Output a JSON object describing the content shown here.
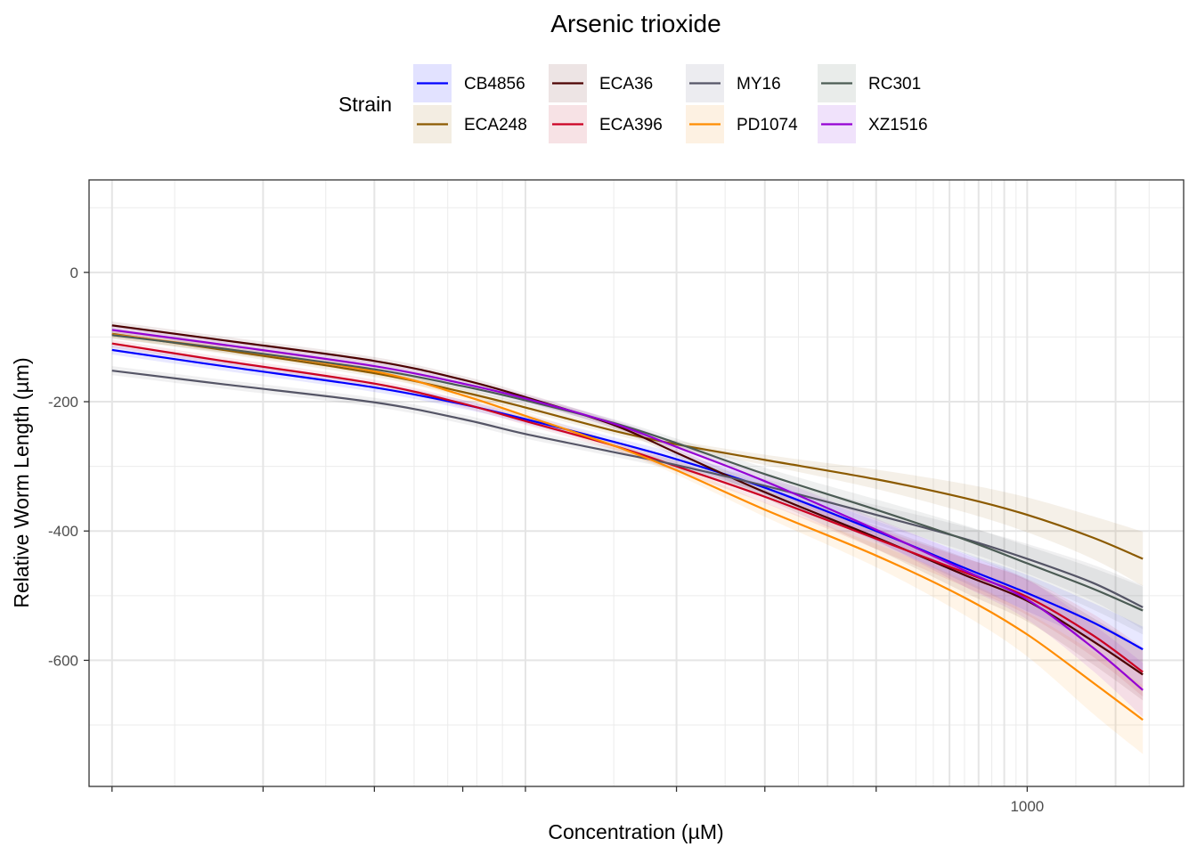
{
  "chart_data": {
    "type": "line",
    "title": "Arsenic trioxide",
    "xlabel": "Concentration (µM)",
    "ylabel": "Relative Worm Length (µm)",
    "x_scale": "log10",
    "x_tick_labels": [
      {
        "value": 1000,
        "label": "1000"
      }
    ],
    "y_ticks": [
      {
        "value": 0,
        "label": "0"
      },
      {
        "value": -200,
        "label": "-200"
      },
      {
        "value": -400,
        "label": "-400"
      },
      {
        "value": -600,
        "label": "-600"
      }
    ],
    "xlim": [
      13.5,
      2050
    ],
    "ylim": [
      -795,
      143
    ],
    "x": [
      15,
      25,
      50,
      75,
      100,
      150,
      200,
      300,
      500,
      750,
      1000,
      1350,
      1700
    ],
    "legend": {
      "title": "Strain",
      "placement": "top"
    },
    "series": [
      {
        "name": "CB4856",
        "color": "#0000ff",
        "band_color": "#e2e2ff",
        "values": [
          -120,
          -145,
          -178,
          -204,
          -227,
          -262,
          -289,
          -333,
          -400,
          -457,
          -496,
          -541,
          -583
        ],
        "lower": [
          -127,
          -152,
          -185,
          -211,
          -234,
          -269,
          -298,
          -344,
          -416,
          -480,
          -524,
          -571,
          -618
        ],
        "upper": [
          -113,
          -138,
          -171,
          -197,
          -220,
          -255,
          -280,
          -322,
          -384,
          -434,
          -468,
          -511,
          -548
        ]
      },
      {
        "name": "ECA248",
        "color": "#8b5a00",
        "band_color": "#f3ede2",
        "values": [
          -95,
          -120,
          -156,
          -185,
          -209,
          -245,
          -266,
          -290,
          -320,
          -349,
          -375,
          -410,
          -443
        ],
        "lower": [
          -101,
          -126,
          -162,
          -191,
          -215,
          -251,
          -272,
          -298,
          -335,
          -371,
          -402,
          -443,
          -485
        ],
        "upper": [
          -89,
          -114,
          -150,
          -179,
          -203,
          -239,
          -260,
          -282,
          -305,
          -327,
          -348,
          -377,
          -401
        ]
      },
      {
        "name": "ECA36",
        "color": "#4c0000",
        "band_color": "#ede4e4",
        "values": [
          -82,
          -105,
          -137,
          -166,
          -193,
          -236,
          -279,
          -340,
          -410,
          -468,
          -508,
          -570,
          -622
        ],
        "lower": [
          -88,
          -111,
          -143,
          -172,
          -199,
          -242,
          -285,
          -349,
          -428,
          -495,
          -540,
          -606,
          -662
        ],
        "upper": [
          -76,
          -99,
          -131,
          -160,
          -187,
          -230,
          -273,
          -331,
          -392,
          -441,
          -476,
          -534,
          -582
        ]
      },
      {
        "name": "ECA396",
        "color": "#cc0022",
        "band_color": "#f7e2e5",
        "values": [
          -110,
          -137,
          -172,
          -203,
          -230,
          -268,
          -300,
          -347,
          -412,
          -464,
          -502,
          -561,
          -618
        ],
        "lower": [
          -116,
          -143,
          -178,
          -209,
          -236,
          -275,
          -308,
          -357,
          -428,
          -486,
          -530,
          -594,
          -656
        ],
        "upper": [
          -104,
          -131,
          -166,
          -197,
          -224,
          -261,
          -292,
          -337,
          -396,
          -442,
          -474,
          -528,
          -580
        ]
      },
      {
        "name": "MY16",
        "color": "#555566",
        "band_color": "#ececf0",
        "values": [
          -152,
          -173,
          -201,
          -227,
          -250,
          -278,
          -298,
          -330,
          -375,
          -412,
          -443,
          -480,
          -518
        ],
        "lower": [
          -159,
          -180,
          -208,
          -234,
          -257,
          -285,
          -306,
          -340,
          -390,
          -431,
          -466,
          -508,
          -552
        ],
        "upper": [
          -145,
          -166,
          -194,
          -220,
          -243,
          -271,
          -290,
          -320,
          -360,
          -393,
          -420,
          -452,
          -484
        ]
      },
      {
        "name": "PD1074",
        "color": "#ff8c00",
        "band_color": "#fdf1e2",
        "values": [
          -96,
          -118,
          -153,
          -190,
          -222,
          -268,
          -306,
          -367,
          -438,
          -503,
          -560,
          -634,
          -692
        ],
        "lower": [
          -102,
          -124,
          -159,
          -196,
          -228,
          -274,
          -313,
          -378,
          -456,
          -530,
          -594,
          -682,
          -745
        ],
        "upper": [
          -90,
          -112,
          -147,
          -184,
          -216,
          -262,
          -299,
          -356,
          -420,
          -476,
          -526,
          -586,
          -639
        ]
      },
      {
        "name": "RC301",
        "color": "#4b5b54",
        "band_color": "#e9ecea",
        "values": [
          -97,
          -118,
          -150,
          -176,
          -198,
          -233,
          -264,
          -312,
          -367,
          -413,
          -450,
          -489,
          -523
        ],
        "lower": [
          -103,
          -124,
          -156,
          -182,
          -204,
          -239,
          -271,
          -322,
          -383,
          -435,
          -477,
          -521,
          -560
        ],
        "upper": [
          -91,
          -112,
          -144,
          -170,
          -192,
          -227,
          -257,
          -302,
          -351,
          -391,
          -423,
          -457,
          -486
        ]
      },
      {
        "name": "XZ1516",
        "color": "#9400d3",
        "band_color": "#f0e2fb",
        "values": [
          -89,
          -112,
          -145,
          -172,
          -195,
          -234,
          -270,
          -323,
          -398,
          -461,
          -506,
          -580,
          -646
        ],
        "lower": [
          -95,
          -118,
          -151,
          -178,
          -201,
          -240,
          -277,
          -333,
          -415,
          -486,
          -537,
          -616,
          -688
        ],
        "upper": [
          -83,
          -106,
          -139,
          -166,
          -189,
          -228,
          -263,
          -313,
          -381,
          -436,
          -475,
          -544,
          -604
        ]
      }
    ]
  }
}
